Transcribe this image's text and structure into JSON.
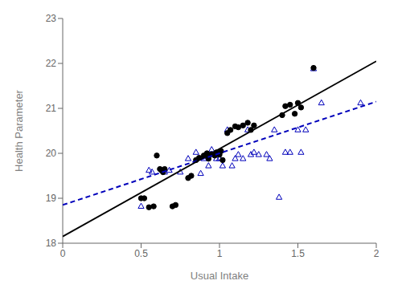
{
  "chart_data": {
    "type": "scatter",
    "xlabel": "Usual Intake",
    "ylabel": "Health Parameter",
    "xlim": [
      0.0,
      2.0
    ],
    "ylim": [
      18,
      23
    ],
    "xticks": [
      0.0,
      0.5,
      1.0,
      1.5,
      2.0
    ],
    "yticks": [
      18,
      19,
      20,
      21,
      22,
      23
    ],
    "grid": false,
    "series": [
      {
        "type": "scatter",
        "marker": "triangle",
        "color": "#0000bb",
        "x": [
          0.5,
          0.55,
          0.57,
          0.65,
          0.68,
          0.75,
          0.8,
          0.85,
          0.88,
          0.9,
          0.92,
          0.93,
          0.95,
          0.98,
          1.0,
          1.02,
          1.05,
          1.08,
          1.1,
          1.12,
          1.15,
          1.18,
          1.2,
          1.22,
          1.25,
          1.3,
          1.32,
          1.35,
          1.38,
          1.42,
          1.45,
          1.5,
          1.52,
          1.55,
          1.6,
          1.65,
          1.9
        ],
        "values": [
          18.82,
          19.62,
          19.58,
          19.58,
          19.62,
          19.58,
          19.88,
          20.02,
          19.55,
          19.88,
          19.97,
          19.72,
          20.08,
          19.88,
          19.88,
          19.72,
          20.52,
          19.72,
          19.88,
          19.97,
          19.88,
          20.52,
          19.97,
          20.02,
          19.97,
          19.97,
          19.88,
          20.52,
          19.02,
          20.02,
          20.02,
          20.52,
          20.02,
          20.52,
          21.88,
          21.12,
          21.12
        ]
      },
      {
        "type": "scatter",
        "marker": "circle",
        "color": "#000000",
        "x": [
          0.5,
          0.52,
          0.55,
          0.58,
          0.6,
          0.62,
          0.63,
          0.64,
          0.65,
          0.7,
          0.72,
          0.8,
          0.82,
          0.85,
          0.87,
          0.9,
          0.92,
          0.93,
          0.95,
          0.97,
          0.98,
          1.0,
          1.01,
          1.02,
          1.05,
          1.07,
          1.1,
          1.12,
          1.15,
          1.18,
          1.2,
          1.22,
          1.4,
          1.42,
          1.45,
          1.48,
          1.5,
          1.52,
          1.6
        ],
        "values": [
          19.0,
          19.0,
          18.8,
          18.82,
          19.95,
          19.65,
          19.62,
          19.58,
          19.65,
          18.82,
          18.85,
          19.45,
          19.5,
          19.85,
          19.9,
          19.95,
          20.0,
          19.88,
          19.98,
          19.95,
          20.02,
          19.97,
          20.05,
          19.85,
          20.45,
          20.52,
          20.6,
          20.58,
          20.62,
          20.68,
          20.52,
          20.62,
          20.85,
          21.05,
          21.08,
          20.88,
          21.12,
          21.02,
          21.9
        ]
      },
      {
        "type": "line",
        "line_style": "dashed",
        "color": "#0000bb",
        "x": [
          0.0,
          2.0
        ],
        "values": [
          18.85,
          21.15
        ]
      },
      {
        "type": "line",
        "line_style": "solid",
        "color": "#000000",
        "x": [
          0.0,
          2.0
        ],
        "values": [
          18.15,
          22.05
        ]
      }
    ]
  }
}
